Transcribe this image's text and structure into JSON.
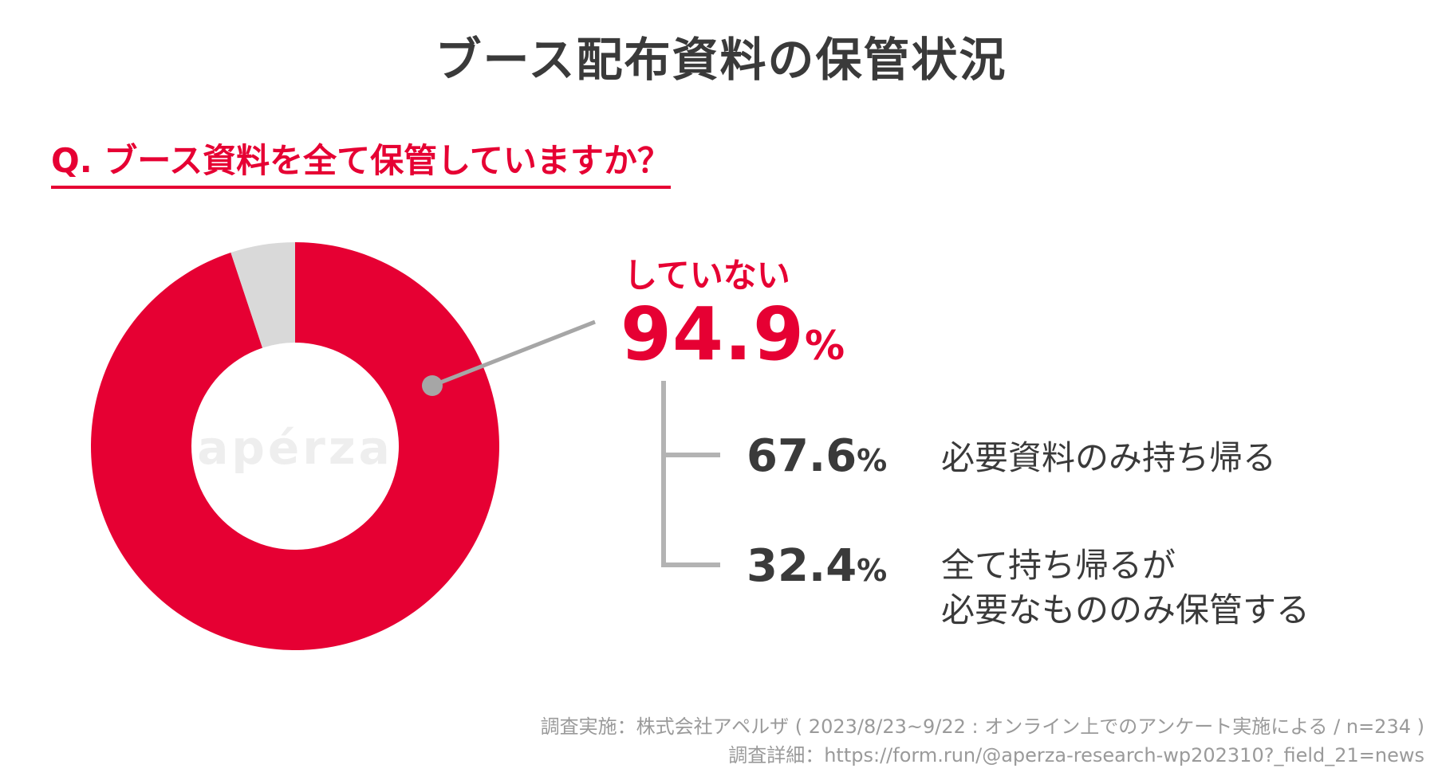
{
  "header": {
    "title": "ブース配布資料の保管状況",
    "question": "Q. ブース資料を全て保管していますか？"
  },
  "watermark": "apérza",
  "colors": {
    "accent": "#e60033",
    "remainder": "#d9d9d9",
    "text": "#3a3a3a",
    "connector": "#b3b3b3",
    "footer": "#9a9a9a"
  },
  "chart_data": {
    "type": "pie",
    "donut": true,
    "slices": [
      {
        "label": "していない",
        "value": 94.9
      },
      {
        "label": "",
        "value": 5.1
      }
    ]
  },
  "callout": {
    "label": "していない",
    "value": "94.9",
    "unit": "%"
  },
  "breakdown": [
    {
      "value": "67.6",
      "unit": "%",
      "lines": [
        "必要資料のみ持ち帰る"
      ]
    },
    {
      "value": "32.4",
      "unit": "%",
      "lines": [
        "全て持ち帰るが",
        "必要なもののみ保管する"
      ]
    }
  ],
  "footer": {
    "line1": "調査実施：株式会社アペルザ ( 2023/8/23~9/22 : オンライン上でのアンケート実施による / n=234 )",
    "line2": "調査詳細：https://form.run/@aperza-research-wp202310?_field_21=news"
  }
}
